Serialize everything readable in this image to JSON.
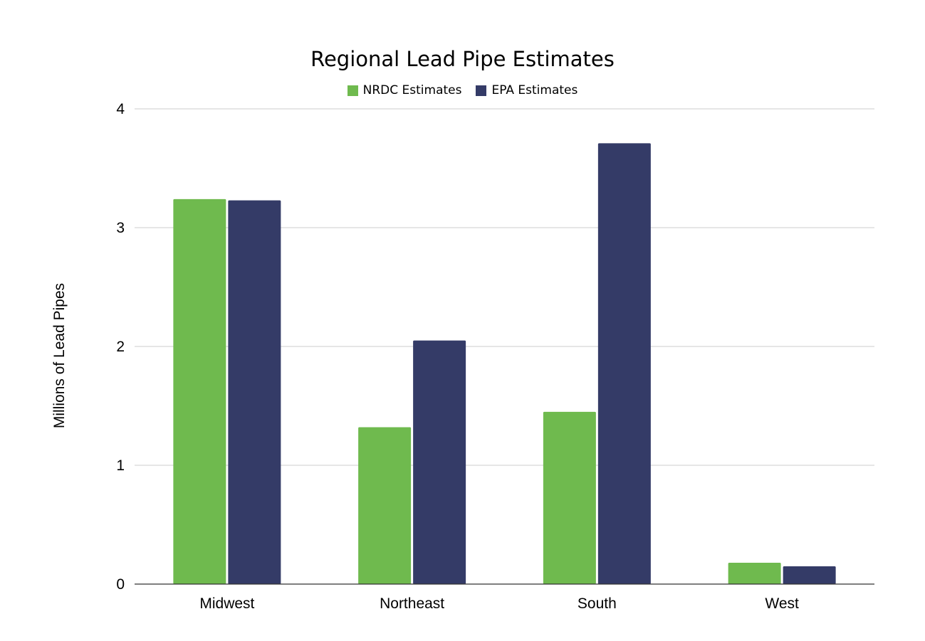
{
  "chart_data": {
    "type": "bar",
    "title": "Regional Lead Pipe Estimates",
    "ylabel": "Millions of Lead Pipes",
    "xlabel": "",
    "categories": [
      "Midwest",
      "Northeast",
      "South",
      "West"
    ],
    "series": [
      {
        "name": "NRDC Estimates",
        "color": "#6fba4e",
        "values": [
          3.24,
          1.32,
          1.45,
          0.18
        ]
      },
      {
        "name": "EPA Estimates",
        "color": "#343b67",
        "values": [
          3.23,
          2.05,
          3.71,
          0.15
        ]
      }
    ],
    "ylim": [
      0,
      4
    ],
    "yticks": [
      "0",
      "1",
      "2",
      "3",
      "4"
    ],
    "grid": true,
    "legend_position": "top-center"
  }
}
